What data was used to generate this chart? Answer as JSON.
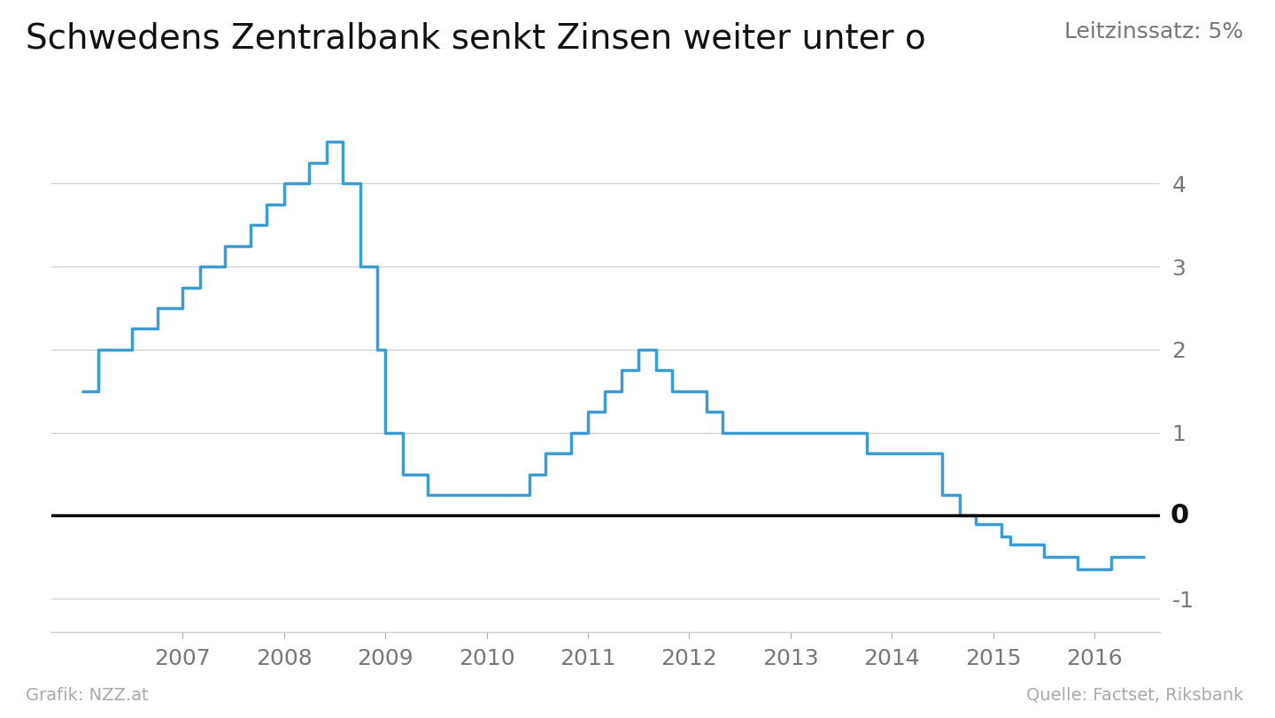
{
  "title": "Schwedens Zentralbank senkt Zinsen weiter unter o",
  "subtitle": "Leitzinssatz: 5%",
  "source_left": "Grafik: NZZ.at",
  "source_right": "Quelle: Factset, Riksbank",
  "line_color": "#3d9cd2",
  "background_color": "#ffffff",
  "zero_line_color": "#000000",
  "grid_color": "#cccccc",
  "title_fontsize": 28,
  "subtitle_fontsize": 18,
  "ylim": [
    -1.4,
    5.0
  ],
  "xlim_start": 2005.7,
  "xlim_end": 2016.65,
  "data": [
    [
      2006.0,
      1.5
    ],
    [
      2006.17,
      2.0
    ],
    [
      2006.5,
      2.25
    ],
    [
      2006.75,
      2.5
    ],
    [
      2007.0,
      2.75
    ],
    [
      2007.17,
      3.0
    ],
    [
      2007.42,
      3.25
    ],
    [
      2007.67,
      3.5
    ],
    [
      2007.83,
      3.75
    ],
    [
      2008.0,
      4.0
    ],
    [
      2008.25,
      4.25
    ],
    [
      2008.42,
      4.5
    ],
    [
      2008.58,
      4.0
    ],
    [
      2008.75,
      3.0
    ],
    [
      2008.92,
      2.0
    ],
    [
      2009.0,
      1.0
    ],
    [
      2009.17,
      0.5
    ],
    [
      2009.42,
      0.25
    ],
    [
      2009.67,
      0.25
    ],
    [
      2009.83,
      0.25
    ],
    [
      2010.0,
      0.25
    ],
    [
      2010.25,
      0.25
    ],
    [
      2010.42,
      0.5
    ],
    [
      2010.58,
      0.75
    ],
    [
      2010.83,
      1.0
    ],
    [
      2011.0,
      1.25
    ],
    [
      2011.17,
      1.5
    ],
    [
      2011.33,
      1.75
    ],
    [
      2011.5,
      2.0
    ],
    [
      2011.67,
      1.75
    ],
    [
      2011.83,
      1.5
    ],
    [
      2012.0,
      1.5
    ],
    [
      2012.08,
      1.5
    ],
    [
      2012.17,
      1.25
    ],
    [
      2012.33,
      1.0
    ],
    [
      2012.67,
      1.0
    ],
    [
      2013.0,
      1.0
    ],
    [
      2013.25,
      1.0
    ],
    [
      2013.5,
      1.0
    ],
    [
      2013.75,
      0.75
    ],
    [
      2014.0,
      0.75
    ],
    [
      2014.25,
      0.75
    ],
    [
      2014.5,
      0.25
    ],
    [
      2014.67,
      0.0
    ],
    [
      2014.83,
      -0.1
    ],
    [
      2015.0,
      -0.1
    ],
    [
      2015.08,
      -0.25
    ],
    [
      2015.17,
      -0.35
    ],
    [
      2015.33,
      -0.35
    ],
    [
      2015.5,
      -0.5
    ],
    [
      2015.67,
      -0.5
    ],
    [
      2015.83,
      -0.65
    ],
    [
      2016.0,
      -0.65
    ],
    [
      2016.17,
      -0.5
    ],
    [
      2016.5,
      -0.5
    ]
  ]
}
